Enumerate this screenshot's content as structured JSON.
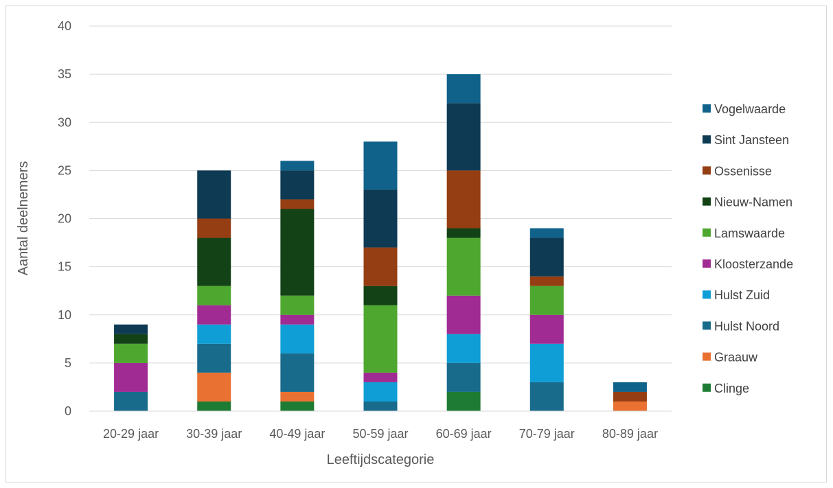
{
  "chart_data": {
    "type": "bar",
    "stacked": true,
    "title": "",
    "xlabel": "Leeftijdscategorie",
    "ylabel": "Aantal deelnemers",
    "ylim": [
      0,
      40
    ],
    "yticks": [
      0,
      5,
      10,
      15,
      20,
      25,
      30,
      35,
      40
    ],
    "grid": true,
    "legend_position": "right",
    "categories": [
      "20-29 jaar",
      "30-39 jaar",
      "40-49 jaar",
      "50-59 jaar",
      "60-69 jaar",
      "70-79 jaar",
      "80-89 jaar"
    ],
    "series": [
      {
        "name": "Clinge",
        "color": "#1e7b34",
        "values": [
          0,
          1,
          1,
          0,
          2,
          0,
          0
        ]
      },
      {
        "name": "Graauw",
        "color": "#e97132",
        "values": [
          0,
          3,
          1,
          0,
          0,
          0,
          1
        ]
      },
      {
        "name": "Hulst Noord",
        "color": "#196b8c",
        "values": [
          2,
          3,
          4,
          1,
          3,
          3,
          0
        ]
      },
      {
        "name": "Hulst Zuid",
        "color": "#0f9ed5",
        "values": [
          0,
          2,
          3,
          2,
          3,
          4,
          0
        ]
      },
      {
        "name": "Kloosterzande",
        "color": "#a02b93",
        "values": [
          3,
          2,
          1,
          1,
          4,
          3,
          0
        ]
      },
      {
        "name": "Lamswaarde",
        "color": "#4ea72e",
        "values": [
          2,
          2,
          2,
          7,
          6,
          3,
          0
        ]
      },
      {
        "name": "Nieuw-Namen",
        "color": "#124216",
        "values": [
          1,
          5,
          9,
          2,
          1,
          0,
          0
        ]
      },
      {
        "name": "Ossenisse",
        "color": "#953e13",
        "values": [
          0,
          2,
          1,
          4,
          6,
          1,
          1
        ]
      },
      {
        "name": "Sint Jansteen",
        "color": "#0e3a53",
        "values": [
          1,
          5,
          3,
          6,
          7,
          4,
          0
        ]
      },
      {
        "name": "Vogelwaarde",
        "color": "#10628a",
        "values": [
          0,
          0,
          1,
          5,
          3,
          1,
          1
        ]
      }
    ]
  }
}
